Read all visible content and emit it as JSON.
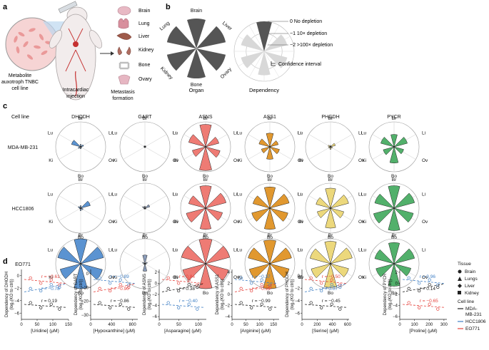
{
  "panel_labels": {
    "a": "a",
    "b": "b",
    "c": "c",
    "d": "d"
  },
  "panel_a": {
    "cell_line_label": [
      "Metabolite",
      "auxotroph TNBC",
      "cell line"
    ],
    "injection_label": [
      "Intracardiac",
      "injection"
    ],
    "organs": [
      "Brain",
      "Lung",
      "Liver",
      "Kidney",
      "Bone",
      "Ovary"
    ],
    "result_label": [
      "Metastasis",
      "formation"
    ]
  },
  "panel_b": {
    "organ_wheel": {
      "labels": [
        "Brain",
        "Liver",
        "Ovary",
        "Bone",
        "Kidney",
        "Lung"
      ],
      "caption": "Organ"
    },
    "dependency_wheel": {
      "legend": [
        "0 No depletion",
        "−1 10× depletion",
        "−2 >100× depletion"
      ],
      "ci_label": "Confidence interval",
      "caption": "Dependency"
    }
  },
  "panel_c": {
    "cell_line_header": "Cell line",
    "genes": [
      "DHODH",
      "GART",
      "ASNS",
      "ASS1",
      "PHGDH",
      "PYCR"
    ],
    "cell_lines": [
      "MDA-MB-231",
      "HCC1806",
      "EO771"
    ],
    "axis_labels": {
      "top": "Br",
      "left": "Lu",
      "right": "Li",
      "bl": "Ki",
      "br": "Ov",
      "bottom": "Bo"
    },
    "colors": {
      "DHODH": "#5b93d1",
      "GART": "#8a9bb8",
      "ASNS": "#ee7b74",
      "ASS1": "#e1982f",
      "PHGDH": "#ecd87c",
      "PYCR": "#52b06b"
    },
    "petal_order": [
      "Br",
      "Li",
      "Ov",
      "Bo",
      "Ki",
      "Lu"
    ],
    "values": {
      "MDA-MB-231": {
        "DHODH": [
          0.1,
          0.12,
          0.05,
          0.08,
          0.1,
          0.38
        ],
        "GART": [
          0.05,
          0.05,
          0.04,
          0.04,
          0.04,
          0.05
        ],
        "ASNS": [
          0.9,
          0.55,
          0.6,
          0.95,
          0.55,
          0.7
        ],
        "ASS1": [
          0.55,
          0.35,
          0.4,
          0.5,
          0.35,
          0.45
        ],
        "PHGDH": [
          0.06,
          0.2,
          0.08,
          0.1,
          0.08,
          0.1
        ],
        "PYCR": [
          0.5,
          0.55,
          0.4,
          0.65,
          0.45,
          0.55
        ]
      },
      "HCC1806": {
        "DHODH": [
          0.1,
          0.4,
          0.1,
          0.1,
          0.05,
          0.1
        ],
        "GART": [
          0.08,
          0.2,
          0.05,
          0.05,
          0.05,
          0.1
        ],
        "ASNS": [
          0.9,
          0.85,
          0.7,
          0.85,
          0.8,
          0.7
        ],
        "ASS1": [
          0.85,
          0.8,
          0.75,
          0.85,
          0.75,
          0.7
        ],
        "PHGDH": [
          0.8,
          0.75,
          0.55,
          0.8,
          0.55,
          0.6
        ],
        "PYCR": [
          0.9,
          0.85,
          0.8,
          0.9,
          0.85,
          0.8
        ]
      },
      "EO771": {
        "DHODH": [
          1.0,
          0.95,
          0.9,
          1.0,
          0.85,
          0.95
        ],
        "GART": [
          0.35,
          0.1,
          0.05,
          0.3,
          0.05,
          0.1
        ],
        "ASNS": [
          1.0,
          1.0,
          0.95,
          1.0,
          0.95,
          1.0
        ],
        "ASS1": [
          0.95,
          0.9,
          0.8,
          1.0,
          0.85,
          0.9
        ],
        "PHGDH": [
          0.9,
          0.9,
          0.75,
          0.95,
          0.8,
          0.85
        ],
        "PYCR": [
          0.85,
          0.85,
          0.7,
          0.9,
          0.75,
          0.8
        ]
      }
    }
  },
  "panel_d": {
    "chart_data": [
      {
        "type": "scatter",
        "ylabel": [
          "Dependency of DHODH",
          "(log₂(KO to ctrl))"
        ],
        "xlabel": "[Uridine] (μM)",
        "xticks": [
          0,
          50,
          100,
          150
        ],
        "yticks": [
          0,
          -2,
          -4,
          -6
        ],
        "xlim": [
          0,
          150
        ],
        "ylim": [
          -7,
          1
        ],
        "annotations": [
          {
            "text": "r = −0.61",
            "color": "#e5413b"
          },
          {
            "text": "r = −0.78",
            "color": "#3f7fc4"
          },
          {
            "text": "r = 0.19",
            "color": "#222222"
          }
        ]
      },
      {
        "type": "scatter",
        "ylabel": [
          "Dependency of GART",
          "(log₂(KO to ctrl))"
        ],
        "xlabel": "[Hypoxanthine] (μM)",
        "xticks": [
          0,
          400,
          800
        ],
        "yticks": [
          0,
          -10,
          -20,
          -30
        ],
        "xlim": [
          0,
          900
        ],
        "ylim": [
          -33,
          3
        ],
        "annotations": [
          {
            "text": "r = −0.89",
            "color": "#3f7fc4"
          },
          {
            "text": "r = −0.90",
            "color": "#e5413b"
          },
          {
            "text": "r = −0.86",
            "color": "#222222"
          }
        ]
      },
      {
        "type": "scatter",
        "ylabel": [
          "Dependency of ASNS",
          "(log₂(KO to ctrl))"
        ],
        "xlabel": "[Asparagine] (μM)",
        "xticks": [
          0,
          50,
          100
        ],
        "yticks": [
          2,
          0,
          -2,
          -4,
          -6
        ],
        "xlim": [
          0,
          120
        ],
        "ylim": [
          -6.5,
          2.5
        ],
        "annotations": [
          {
            "text": "r = 0.84",
            "color": "#e5413b"
          },
          {
            "text": "r = 0.38",
            "color": "#222222"
          },
          {
            "text": "r = −0.40",
            "color": "#3f7fc4"
          }
        ]
      },
      {
        "type": "scatter",
        "ylabel": [
          "Dependency of ASS1",
          "(log₂(KO to ctrl))"
        ],
        "xlabel": "[Arginine] (μM)",
        "xticks": [
          0,
          50,
          100,
          150
        ],
        "yticks": [
          4,
          2,
          0,
          -2,
          -4
        ],
        "xlim": [
          0,
          170
        ],
        "ylim": [
          -4.5,
          4.5
        ],
        "annotations": [
          {
            "text": "r = −0.37",
            "color": "#3f7fc4"
          },
          {
            "text": "r = −0.99",
            "color": "#e5413b"
          },
          {
            "text": "r = −0.99",
            "color": "#222222"
          }
        ]
      },
      {
        "type": "scatter",
        "ylabel": [
          "Dependency of PHGDH",
          "(log₂(KO to ctrl))"
        ],
        "xlabel": "[Serine] (μM)",
        "xticks": [
          0,
          200,
          400,
          600
        ],
        "yticks": [
          0,
          -2,
          -4,
          -6
        ],
        "xlim": [
          0,
          620
        ],
        "ylim": [
          -7,
          1
        ],
        "annotations": [
          {
            "text": "r = −0.50",
            "color": "#e5413b"
          },
          {
            "text": "r = 0.07",
            "color": "#3f7fc4"
          },
          {
            "text": "r = −0.45",
            "color": "#222222"
          }
        ]
      },
      {
        "type": "scatter",
        "ylabel": [
          "Dependency of PYCR",
          "(log₂(KO to ctrl))"
        ],
        "xlabel": "[Proline] (μM)",
        "xticks": [
          0,
          100,
          200,
          300
        ],
        "yticks": [
          2,
          0,
          -2,
          -4,
          -6
        ],
        "xlim": [
          0,
          320
        ],
        "ylim": [
          -6.5,
          2.5
        ],
        "annotations": [
          {
            "text": "r = 0.96",
            "color": "#3f7fc4"
          },
          {
            "text": "r = 0.14",
            "color": "#222222"
          },
          {
            "text": "r = −0.65",
            "color": "#e5413b"
          }
        ]
      }
    ],
    "legend": {
      "tissue_title": "Tissue",
      "tissues": [
        "Brain",
        "Lungs",
        "Liver",
        "Kidney"
      ],
      "cell_line_title": "Cell line",
      "cell_lines": [
        {
          "name": "MDA-MB-231",
          "color": "#222222"
        },
        {
          "name": "HCC1806",
          "color": "#3f7fc4"
        },
        {
          "name": "EO771",
          "color": "#e5413b"
        }
      ]
    }
  }
}
